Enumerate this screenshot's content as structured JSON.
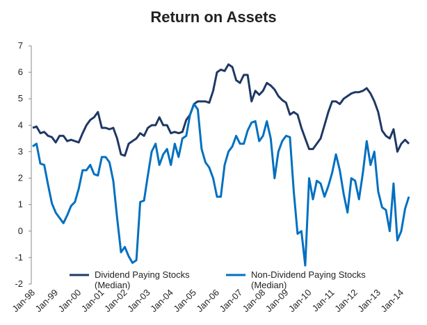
{
  "chart_data": {
    "type": "line",
    "title": "Return on Assets",
    "categories": [
      "Jan-98",
      null,
      null,
      null,
      null,
      null,
      "Jan-99",
      null,
      null,
      null,
      null,
      null,
      "Jan-00",
      null,
      null,
      null,
      null,
      null,
      "Jan-01",
      null,
      null,
      null,
      null,
      null,
      "Jan-02",
      null,
      null,
      null,
      null,
      null,
      "Jan-03",
      null,
      null,
      null,
      null,
      null,
      "Jan-04",
      null,
      null,
      null,
      null,
      null,
      "Jan-05",
      null,
      null,
      null,
      null,
      null,
      "Jan-06",
      null,
      null,
      null,
      null,
      null,
      "Jan-07",
      null,
      null,
      null,
      null,
      null,
      "Jan-08",
      null,
      null,
      null,
      null,
      null,
      "Jan-09",
      null,
      null,
      null,
      null,
      null,
      "Jan-10",
      null,
      null,
      null,
      null,
      null,
      "Jan-11",
      null,
      null,
      null,
      null,
      null,
      "Jan-12",
      null,
      null,
      null,
      null,
      null,
      "Jan-13",
      null,
      null,
      null,
      null,
      null,
      "Jan-14",
      null,
      null
    ],
    "series": [
      {
        "name": "Dividend Paying Stocks (Median)",
        "color": "#1f3864",
        "values": [
          3.9,
          3.95,
          3.7,
          3.75,
          3.6,
          3.55,
          3.35,
          3.6,
          3.6,
          3.4,
          3.45,
          3.4,
          3.35,
          3.7,
          4.0,
          4.2,
          4.3,
          4.5,
          3.9,
          3.9,
          3.85,
          3.9,
          3.5,
          2.9,
          2.85,
          3.3,
          3.4,
          3.5,
          3.7,
          3.6,
          3.9,
          4.0,
          4.0,
          4.3,
          4.0,
          4.0,
          3.7,
          3.75,
          3.7,
          3.75,
          4.2,
          4.4,
          4.8,
          4.9,
          4.9,
          4.9,
          4.85,
          5.3,
          6.0,
          6.1,
          6.05,
          6.3,
          6.2,
          5.7,
          5.6,
          5.9,
          5.9,
          4.9,
          5.3,
          5.15,
          5.3,
          5.6,
          5.5,
          5.35,
          5.1,
          4.95,
          4.85,
          4.4,
          4.5,
          4.4,
          3.9,
          3.5,
          3.1,
          3.1,
          3.3,
          3.5,
          4.0,
          4.5,
          4.9,
          4.9,
          4.8,
          5.0,
          5.1,
          5.2,
          5.25,
          5.25,
          5.3,
          5.4,
          5.2,
          4.9,
          4.5,
          3.8,
          3.6,
          3.5,
          3.85,
          3.0,
          3.3,
          3.45,
          3.3
        ]
      },
      {
        "name": "Non-Dividend Paying Stocks (Median)",
        "color": "#0070c0",
        "values": [
          3.2,
          3.3,
          2.55,
          2.5,
          1.75,
          1.05,
          0.7,
          0.5,
          0.3,
          0.6,
          0.95,
          1.1,
          1.6,
          2.3,
          2.3,
          2.5,
          2.15,
          2.1,
          2.8,
          2.8,
          2.6,
          1.9,
          0.5,
          -0.8,
          -0.6,
          -0.95,
          -1.2,
          -1.1,
          1.1,
          1.15,
          2.1,
          3.0,
          3.3,
          2.5,
          2.9,
          3.1,
          2.5,
          3.3,
          2.8,
          3.5,
          3.6,
          4.4,
          4.8,
          4.6,
          3.1,
          2.6,
          2.4,
          2.0,
          1.3,
          1.3,
          2.5,
          3.0,
          3.2,
          3.6,
          3.3,
          3.3,
          3.8,
          4.1,
          4.15,
          3.4,
          3.6,
          4.15,
          3.5,
          2.0,
          3.0,
          3.4,
          3.6,
          3.55,
          1.5,
          -0.1,
          0.0,
          -1.3,
          2.0,
          1.2,
          1.9,
          1.8,
          1.3,
          1.7,
          2.2,
          2.9,
          2.3,
          1.4,
          0.7,
          2.0,
          1.9,
          1.2,
          2.2,
          3.4,
          2.5,
          3.0,
          1.5,
          0.9,
          0.8,
          0.0,
          1.8,
          -0.35,
          0.0,
          0.85,
          1.3
        ]
      }
    ],
    "ylim": [
      -2,
      7
    ],
    "yticks": [
      -2,
      -1,
      0,
      1,
      2,
      3,
      4,
      5,
      6,
      7
    ],
    "legend": "bottom",
    "grid": false
  }
}
